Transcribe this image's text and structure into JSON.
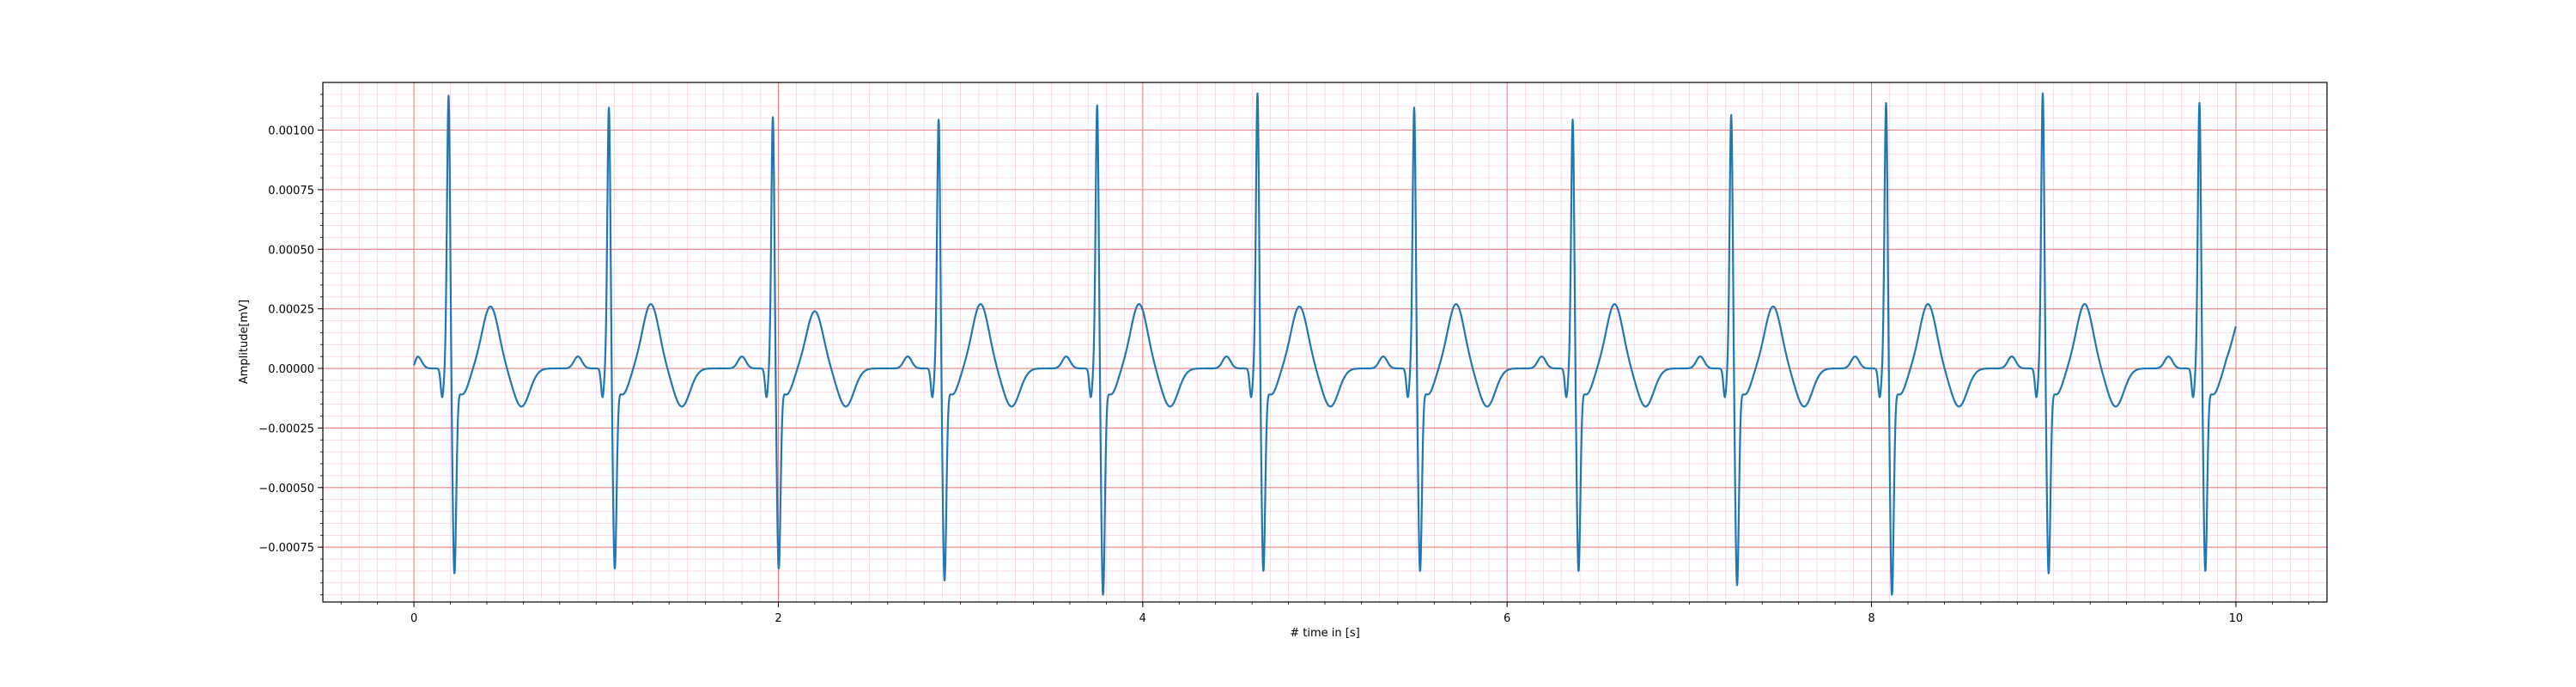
{
  "chart_data": {
    "type": "line",
    "title": "",
    "xlabel": "# time in [s]",
    "ylabel": "Amplitude[mV]",
    "xlim": [
      -0.5,
      10.5
    ],
    "ylim": [
      -0.00098,
      0.0012
    ],
    "grid": true,
    "x_ticks": [
      0,
      2,
      4,
      6,
      8,
      10
    ],
    "x_tick_labels": [
      "0",
      "2",
      "4",
      "6",
      "8",
      "10"
    ],
    "y_ticks": [
      -0.00075,
      -0.0005,
      -0.00025,
      0.0,
      0.00025,
      0.0005,
      0.00075,
      0.001
    ],
    "y_tick_labels": [
      "−0.00075",
      "−0.00050",
      "−0.00025",
      "0.00000",
      "0.00025",
      "0.00050",
      "0.00075",
      "0.00100"
    ],
    "colors": {
      "line": "#1f77b4",
      "major_grid": "#f08080",
      "minor_grid": "#f7c6e0"
    },
    "series": [
      {
        "beats": [
          {
            "t": 0.19,
            "r": 0.00109,
            "s": -0.00078,
            "t_amp": 0.00026
          },
          {
            "t": 1.07,
            "r": 0.00104,
            "s": -0.00076,
            "t_amp": 0.00027
          },
          {
            "t": 1.97,
            "r": 0.001,
            "s": -0.00076,
            "t_amp": 0.00024
          },
          {
            "t": 2.88,
            "r": 0.00099,
            "s": -0.00081,
            "t_amp": 0.00027
          },
          {
            "t": 3.75,
            "r": 0.00105,
            "s": -0.00087,
            "t_amp": 0.00027
          },
          {
            "t": 4.63,
            "r": 0.0011,
            "s": -0.00077,
            "t_amp": 0.00026
          },
          {
            "t": 5.49,
            "r": 0.00104,
            "s": -0.00077,
            "t_amp": 0.00027
          },
          {
            "t": 6.36,
            "r": 0.00099,
            "s": -0.00077,
            "t_amp": 0.00027
          },
          {
            "t": 7.23,
            "r": 0.00101,
            "s": -0.00083,
            "t_amp": 0.00026
          },
          {
            "t": 8.08,
            "r": 0.00106,
            "s": -0.00087,
            "t_amp": 0.00027
          },
          {
            "t": 8.94,
            "r": 0.0011,
            "s": -0.00078,
            "t_amp": 0.00027
          },
          {
            "t": 9.8,
            "r": 0.00106,
            "s": -0.00077,
            "t_amp": 0.00027
          }
        ],
        "start_value": -2e-05,
        "end_value": -4e-05
      }
    ]
  }
}
